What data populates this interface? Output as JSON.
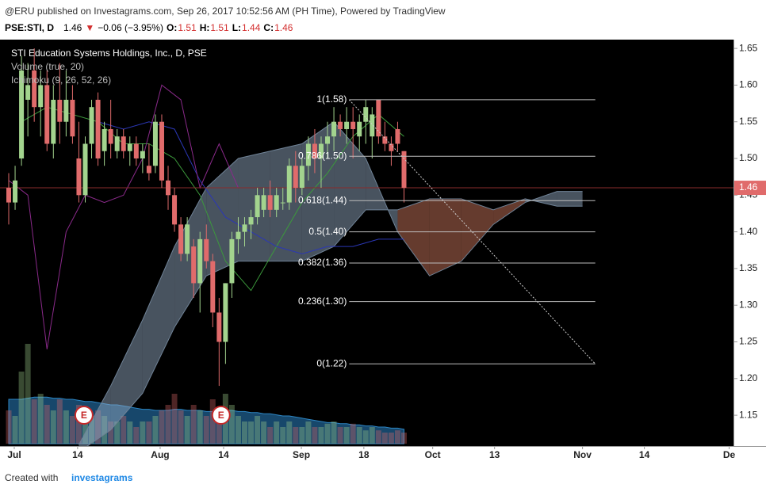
{
  "header": {
    "line": "@ERU published on Investagrams.com, Sep 26, 2017 10:52:56 AM (PH Time), Powered by TradingView",
    "symbol": "PSE:STI, D",
    "last": 1.46,
    "arrow": "▼",
    "change": "−0.06 (−3.95%)",
    "ohlc": [
      {
        "label": "O:",
        "value": 1.51
      },
      {
        "label": "H:",
        "value": 1.51
      },
      {
        "label": "L:",
        "value": 1.44
      },
      {
        "label": "C:",
        "value": 1.46
      }
    ]
  },
  "chart_data": {
    "type": "candlestick",
    "legend": [
      "STI Education Systems Holdings, Inc., D, PSE",
      "Volume (true, 20)",
      "Ichimoku (9, 26, 52, 26)"
    ],
    "up_color": "#a3d48e",
    "down_color": "#e06b6b",
    "open": [
      1.46,
      1.44,
      1.5,
      1.58,
      1.62,
      1.57,
      1.6,
      1.52,
      1.58,
      1.55,
      1.58,
      1.5,
      1.45,
      1.52,
      1.58,
      1.51,
      1.54,
      1.51,
      1.53,
      1.51,
      1.52,
      1.5,
      1.49,
      1.49,
      1.55,
      1.47,
      1.45,
      1.41,
      1.37,
      1.38,
      1.33,
      1.39,
      1.36,
      1.29,
      1.25,
      1.33,
      1.39,
      1.4,
      1.41,
      1.42,
      1.43,
      1.45,
      1.43,
      1.44,
      1.44,
      1.49,
      1.46,
      1.49,
      1.52,
      1.5,
      1.52,
      1.53,
      1.55,
      1.54,
      1.55,
      1.53,
      1.55,
      1.53,
      1.58,
      1.53,
      1.52,
      1.54,
      1.51
    ],
    "high": [
      1.48,
      1.49,
      1.64,
      1.63,
      1.65,
      1.62,
      1.62,
      1.6,
      1.63,
      1.62,
      1.6,
      1.55,
      1.53,
      1.58,
      1.59,
      1.55,
      1.58,
      1.54,
      1.54,
      1.53,
      1.53,
      1.52,
      1.52,
      1.56,
      1.56,
      1.49,
      1.46,
      1.42,
      1.42,
      1.39,
      1.4,
      1.41,
      1.37,
      1.31,
      1.33,
      1.4,
      1.42,
      1.42,
      1.43,
      1.46,
      1.46,
      1.47,
      1.46,
      1.46,
      1.5,
      1.51,
      1.5,
      1.53,
      1.54,
      1.53,
      1.55,
      1.57,
      1.56,
      1.57,
      1.57,
      1.56,
      1.58,
      1.57,
      1.58,
      1.55,
      1.53,
      1.55,
      1.51
    ],
    "low": [
      1.41,
      1.43,
      1.49,
      1.53,
      1.55,
      1.53,
      1.51,
      1.5,
      1.52,
      1.53,
      1.52,
      1.44,
      1.44,
      1.5,
      1.49,
      1.49,
      1.5,
      1.5,
      1.5,
      1.49,
      1.49,
      1.48,
      1.47,
      1.48,
      1.46,
      1.43,
      1.4,
      1.36,
      1.36,
      1.31,
      1.29,
      1.35,
      1.27,
      1.19,
      1.22,
      1.31,
      1.37,
      1.38,
      1.39,
      1.41,
      1.42,
      1.42,
      1.42,
      1.43,
      1.43,
      1.44,
      1.45,
      1.47,
      1.48,
      1.46,
      1.5,
      1.51,
      1.53,
      1.52,
      1.5,
      1.51,
      1.52,
      1.5,
      1.52,
      1.51,
      1.49,
      1.51,
      1.44
    ],
    "close": [
      1.44,
      1.47,
      1.62,
      1.6,
      1.57,
      1.6,
      1.52,
      1.58,
      1.55,
      1.58,
      1.53,
      1.45,
      1.52,
      1.57,
      1.5,
      1.54,
      1.52,
      1.53,
      1.51,
      1.52,
      1.5,
      1.51,
      1.48,
      1.55,
      1.47,
      1.45,
      1.41,
      1.37,
      1.41,
      1.33,
      1.39,
      1.36,
      1.29,
      1.25,
      1.33,
      1.39,
      1.4,
      1.41,
      1.42,
      1.45,
      1.45,
      1.43,
      1.45,
      1.44,
      1.49,
      1.46,
      1.49,
      1.52,
      1.5,
      1.52,
      1.53,
      1.55,
      1.54,
      1.55,
      1.54,
      1.55,
      1.57,
      1.56,
      1.53,
      1.52,
      1.51,
      1.52,
      1.46
    ],
    "volume": [
      30,
      25,
      65,
      90,
      40,
      45,
      35,
      30,
      40,
      30,
      25,
      35,
      30,
      25,
      30,
      25,
      20,
      20,
      25,
      20,
      15,
      20,
      20,
      25,
      30,
      35,
      45,
      30,
      25,
      35,
      30,
      25,
      40,
      30,
      45,
      35,
      25,
      20,
      20,
      25,
      20,
      15,
      20,
      15,
      20,
      15,
      15,
      20,
      15,
      15,
      18,
      20,
      15,
      15,
      18,
      15,
      12,
      15,
      12,
      10,
      10,
      12,
      10
    ],
    "volume_ma": [
      40,
      40,
      40,
      41,
      42,
      42,
      42,
      41,
      41,
      40,
      40,
      39,
      38,
      38,
      37,
      36,
      35,
      35,
      34,
      33,
      32,
      31,
      31,
      30,
      30,
      30,
      31,
      31,
      30,
      30,
      30,
      29,
      29,
      29,
      30,
      30,
      29,
      29,
      28,
      28,
      27,
      27,
      26,
      25,
      25,
      24,
      23,
      22,
      21,
      20,
      19,
      19,
      18,
      18,
      17,
      17,
      16,
      16,
      15,
      15,
      14,
      14,
      13
    ],
    "volume_ylim": [
      0,
      100
    ],
    "cloud": {
      "x": [
        11,
        16,
        21,
        26,
        31,
        36,
        41,
        46,
        51,
        56,
        61,
        66,
        71,
        76,
        81,
        86,
        90
      ],
      "span_a": [
        1.11,
        1.19,
        1.28,
        1.38,
        1.46,
        1.5,
        1.51,
        1.52,
        1.55,
        1.5,
        1.4,
        1.34,
        1.36,
        1.41,
        1.44,
        1.455,
        1.455
      ],
      "span_b": [
        1.1,
        1.13,
        1.18,
        1.27,
        1.34,
        1.36,
        1.36,
        1.36,
        1.38,
        1.43,
        1.43,
        1.445,
        1.445,
        1.43,
        1.445,
        1.435,
        1.435
      ],
      "up_color": "#8fa6bd",
      "down_color": "#a8624c"
    },
    "lines": [
      {
        "color": "#3c9a3c",
        "x": [
          2,
          6,
          10,
          14,
          18,
          22,
          26,
          30,
          34,
          38,
          42,
          46,
          50,
          54,
          58,
          62
        ],
        "values": [
          1.55,
          1.57,
          1.56,
          1.55,
          1.52,
          1.52,
          1.5,
          1.45,
          1.36,
          1.32,
          1.38,
          1.44,
          1.48,
          1.53,
          1.56,
          1.53
        ]
      },
      {
        "color": "#2b37b5",
        "x": [
          14,
          18,
          22,
          26,
          30,
          34,
          38,
          42,
          46,
          50,
          54,
          58,
          62
        ],
        "values": [
          1.55,
          1.54,
          1.55,
          1.54,
          1.47,
          1.42,
          1.4,
          1.38,
          1.37,
          1.38,
          1.38,
          1.39,
          1.39
        ]
      },
      {
        "color": "#8a2a8a",
        "x": [
          0,
          3,
          6,
          9,
          12,
          15,
          18,
          21,
          24,
          27,
          30,
          33,
          36
        ],
        "values": [
          1.47,
          1.45,
          1.24,
          1.4,
          1.45,
          1.44,
          1.45,
          1.5,
          1.6,
          1.58,
          1.46,
          1.52,
          1.46
        ]
      }
    ],
    "fib": {
      "x": [
        53.4,
        92
      ],
      "levels": [
        {
          "value": 1.58,
          "label": "1(1.58)"
        },
        {
          "value": 1.503,
          "label": "0.786(1.50)"
        },
        {
          "value": 1.4425,
          "label": "0.618(1.44)"
        },
        {
          "value": 1.4,
          "label": "0.5(1.40)"
        },
        {
          "value": 1.3575,
          "label": "0.382(1.36)"
        },
        {
          "value": 1.305,
          "label": "0.236(1.30)"
        },
        {
          "value": 1.22,
          "label": "0(1.22)"
        }
      ]
    },
    "events": [
      {
        "x": 11.8,
        "label": "E"
      },
      {
        "x": 33.3,
        "label": "E"
      }
    ],
    "last_price": 1.46,
    "xlim": [
      -1.37,
      113.68
    ],
    "xticks": [
      {
        "value": 0.87,
        "label": "Jul"
      },
      {
        "value": 10.8,
        "label": "14"
      },
      {
        "value": 23.75,
        "label": "Aug"
      },
      {
        "value": 33.7,
        "label": "14"
      },
      {
        "value": 45.9,
        "label": "Sep"
      },
      {
        "value": 55.7,
        "label": "18"
      },
      {
        "value": 66.5,
        "label": "Oct"
      },
      {
        "value": 76.2,
        "label": "13"
      },
      {
        "value": 90.0,
        "label": "Nov"
      },
      {
        "value": 99.7,
        "label": "14"
      },
      {
        "value": 113,
        "label": "De"
      }
    ],
    "ylim": [
      1.108,
      1.662
    ],
    "yticks": [
      1.15,
      {
        "value": 1.2,
        "label": "1.20"
      },
      1.25,
      {
        "value": 1.3,
        "label": "1.30"
      },
      1.35,
      {
        "value": 1.4,
        "label": "1.40"
      },
      1.45,
      {
        "value": 1.5,
        "label": "1.50"
      },
      1.55,
      {
        "value": 1.6,
        "label": "1.60"
      },
      1.65
    ]
  },
  "footer": {
    "text": "Created with",
    "brand": "investagrams"
  }
}
